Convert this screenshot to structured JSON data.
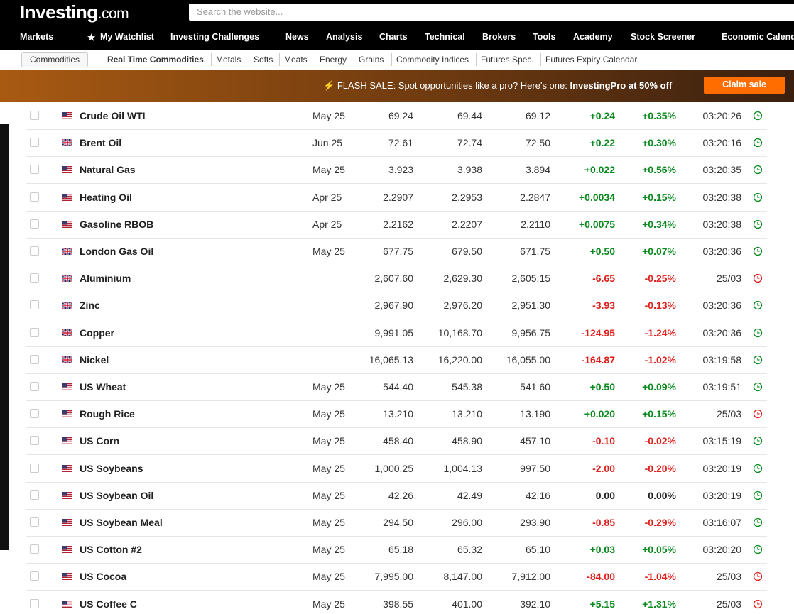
{
  "header": {
    "logo_main": "Investing",
    "logo_suffix": ".com",
    "search_placeholder": "Search the website..."
  },
  "nav": [
    "Markets",
    "My Watchlist",
    "Investing Challenges",
    "News",
    "Analysis",
    "Charts",
    "Technical",
    "Brokers",
    "Tools",
    "Academy",
    "Stock Screener",
    "Economic Calendar"
  ],
  "subnav": [
    "Commodities",
    "Real Time Commodities",
    "Metals",
    "Softs",
    "Meats",
    "Energy",
    "Grains",
    "Commodity Indices",
    "Futures Spec.",
    "Futures Expiry Calendar"
  ],
  "banner": {
    "text": "FLASH SALE: Spot opportunities like a pro? Here's one: ",
    "highlight": "InvestingPro at 50% off",
    "button": "Claim sale"
  },
  "table": {
    "rows": [
      {
        "flag": "us",
        "name": "Crude Oil WTI",
        "month": "May 25",
        "last": "69.24",
        "high": "69.44",
        "low": "69.12",
        "chg": "+0.24",
        "chg_pct": "+0.35%",
        "time": "03:20:26"
      },
      {
        "flag": "uk",
        "name": "Brent Oil",
        "month": "Jun 25",
        "last": "72.61",
        "high": "72.74",
        "low": "72.50",
        "chg": "+0.22",
        "chg_pct": "+0.30%",
        "time": "03:20:16"
      },
      {
        "flag": "us",
        "name": "Natural Gas",
        "month": "May 25",
        "last": "3.923",
        "high": "3.938",
        "low": "3.894",
        "chg": "+0.022",
        "chg_pct": "+0.56%",
        "time": "03:20:35"
      },
      {
        "flag": "us",
        "name": "Heating Oil",
        "month": "Apr 25",
        "last": "2.2907",
        "high": "2.2953",
        "low": "2.2847",
        "chg": "+0.0034",
        "chg_pct": "+0.15%",
        "time": "03:20:38"
      },
      {
        "flag": "us",
        "name": "Gasoline RBOB",
        "month": "Apr 25",
        "last": "2.2162",
        "high": "2.2207",
        "low": "2.2110",
        "chg": "+0.0075",
        "chg_pct": "+0.34%",
        "time": "03:20:38"
      },
      {
        "flag": "uk",
        "name": "London Gas Oil",
        "month": "May 25",
        "last": "677.75",
        "high": "679.50",
        "low": "671.75",
        "chg": "+0.50",
        "chg_pct": "+0.07%",
        "time": "03:20:36"
      },
      {
        "flag": "uk",
        "name": "Aluminium",
        "month": null,
        "last": "2,607.60",
        "high": "2,629.30",
        "low": "2,605.15",
        "chg": "-6.65",
        "chg_pct": "-0.25%",
        "time": "25/03"
      },
      {
        "flag": "uk",
        "name": "Zinc",
        "month": null,
        "last": "2,967.90",
        "high": "2,976.20",
        "low": "2,951.30",
        "chg": "-3.93",
        "chg_pct": "-0.13%",
        "time": "03:20:36"
      },
      {
        "flag": "uk",
        "name": "Copper",
        "month": null,
        "last": "9,991.05",
        "high": "10,168.70",
        "low": "9,956.75",
        "chg": "-124.95",
        "chg_pct": "-1.24%",
        "time": "03:20:36"
      },
      {
        "flag": "uk",
        "name": "Nickel",
        "month": null,
        "last": "16,065.13",
        "high": "16,220.00",
        "low": "16,055.00",
        "chg": "-164.87",
        "chg_pct": "-1.02%",
        "time": "03:19:58"
      },
      {
        "flag": "us",
        "name": "US Wheat",
        "month": "May 25",
        "last": "544.40",
        "high": "545.38",
        "low": "541.60",
        "chg": "+0.50",
        "chg_pct": "+0.09%",
        "time": "03:19:51"
      },
      {
        "flag": "us",
        "name": "Rough Rice",
        "month": "May 25",
        "last": "13.210",
        "high": "13.210",
        "low": "13.190",
        "chg": "+0.020",
        "chg_pct": "+0.15%",
        "time": "25/03"
      },
      {
        "flag": "us",
        "name": "US Corn",
        "month": "May 25",
        "last": "458.40",
        "high": "458.90",
        "low": "457.10",
        "chg": "-0.10",
        "chg_pct": "-0.02%",
        "time": "03:15:19"
      },
      {
        "flag": "us",
        "name": "US Soybeans",
        "month": "May 25",
        "last": "1,000.25",
        "high": "1,004.13",
        "low": "997.50",
        "chg": "-2.00",
        "chg_pct": "-0.20%",
        "time": "03:20:19"
      },
      {
        "flag": "us",
        "name": "US Soybean Oil",
        "month": "May 25",
        "last": "42.26",
        "high": "42.49",
        "low": "42.16",
        "chg": "0.00",
        "chg_pct": "0.00%",
        "time": "03:20:19"
      },
      {
        "flag": "us",
        "name": "US Soybean Meal",
        "month": "May 25",
        "last": "294.50",
        "high": "296.00",
        "low": "293.90",
        "chg": "-0.85",
        "chg_pct": "-0.29%",
        "time": "03:16:07"
      },
      {
        "flag": "us",
        "name": "US Cotton #2",
        "month": "May 25",
        "last": "65.18",
        "high": "65.32",
        "low": "65.10",
        "chg": "+0.03",
        "chg_pct": "+0.05%",
        "time": "03:20:20"
      },
      {
        "flag": "us",
        "name": "US Cocoa",
        "month": "May 25",
        "last": "7,995.00",
        "high": "8,147.00",
        "low": "7,912.00",
        "chg": "-84.00",
        "chg_pct": "-1.04%",
        "time": "25/03"
      },
      {
        "flag": "us",
        "name": "US Coffee C",
        "month": "May 25",
        "last": "398.55",
        "high": "401.00",
        "low": "392.10",
        "chg": "+5.15",
        "chg_pct": "+1.31%",
        "time": "25/03"
      }
    ]
  }
}
